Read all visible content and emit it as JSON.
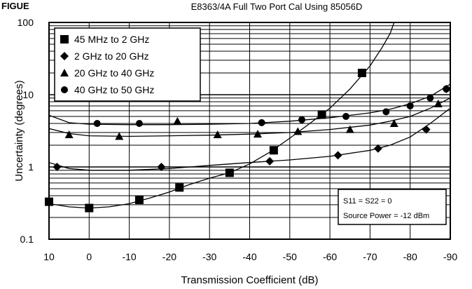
{
  "corner_label": "FIGUE",
  "chart_data": {
    "type": "line",
    "title": "E8363/4A Full Two Port Cal Using 85056D",
    "xlabel": "Transmission Coefficient (dB)",
    "ylabel": "Uncertainty (degrees)",
    "x_ticks": [
      10,
      0,
      -10,
      -20,
      -30,
      -40,
      -50,
      -60,
      -70,
      -80,
      -90
    ],
    "x_tick_labels": [
      "10",
      "0",
      "-10",
      "-20",
      "-30",
      "-40",
      "-50",
      "-60",
      "-70",
      "-80",
      "-90"
    ],
    "y_ticks": [
      0.1,
      1,
      10,
      100
    ],
    "y_tick_labels": [
      "0.1",
      "1",
      "10",
      "100"
    ],
    "xlim": [
      10,
      -90
    ],
    "ylim": [
      0.1,
      100
    ],
    "y_scale": "log",
    "grid": true,
    "legend_position": "top-left",
    "annotation": [
      "S11 = S22 = 0",
      "Source Power = -12 dBm"
    ],
    "series": [
      {
        "name": "45 MHz to 2 GHz",
        "marker": "square",
        "markers": [
          [
            10,
            0.33
          ],
          [
            0,
            0.27
          ],
          [
            -12.5,
            0.35
          ],
          [
            -22.5,
            0.52
          ],
          [
            -35,
            0.83
          ],
          [
            -46,
            1.7
          ],
          [
            -58,
            5.3
          ],
          [
            -68,
            20
          ]
        ],
        "curve": [
          [
            10,
            0.31
          ],
          [
            5,
            0.28
          ],
          [
            0,
            0.27
          ],
          [
            -5,
            0.28
          ],
          [
            -10,
            0.31
          ],
          [
            -15,
            0.37
          ],
          [
            -20,
            0.45
          ],
          [
            -25,
            0.57
          ],
          [
            -30,
            0.7
          ],
          [
            -35,
            0.83
          ],
          [
            -40,
            1.1
          ],
          [
            -45,
            1.6
          ],
          [
            -50,
            2.5
          ],
          [
            -55,
            4.0
          ],
          [
            -60,
            6.5
          ],
          [
            -65,
            12
          ],
          [
            -70,
            25
          ],
          [
            -73,
            45
          ],
          [
            -75,
            70
          ],
          [
            -76,
            100
          ]
        ]
      },
      {
        "name": "2 GHz to 20 GHz",
        "marker": "diamond",
        "markers": [
          [
            8,
            1.0
          ],
          [
            -18,
            1.0
          ],
          [
            -45,
            1.2
          ],
          [
            -62,
            1.45
          ],
          [
            -72,
            1.8
          ],
          [
            -84,
            3.3
          ],
          [
            -89,
            12
          ]
        ],
        "curve": [
          [
            10,
            1.15
          ],
          [
            5,
            0.95
          ],
          [
            0,
            0.9
          ],
          [
            -10,
            0.9
          ],
          [
            -20,
            0.95
          ],
          [
            -30,
            1.05
          ],
          [
            -40,
            1.15
          ],
          [
            -50,
            1.25
          ],
          [
            -60,
            1.4
          ],
          [
            -70,
            1.7
          ],
          [
            -75,
            2.0
          ],
          [
            -80,
            2.6
          ],
          [
            -85,
            4.0
          ],
          [
            -90,
            6.5
          ]
        ]
      },
      {
        "name": "20 GHz to 40 GHz",
        "marker": "triangle",
        "markers": [
          [
            5,
            2.8
          ],
          [
            -7.5,
            2.65
          ],
          [
            -22,
            4.3
          ],
          [
            -32,
            2.8
          ],
          [
            -42,
            2.85
          ],
          [
            -52,
            3.1
          ],
          [
            -65,
            3.3
          ],
          [
            -76,
            4.0
          ],
          [
            -87,
            7.5
          ]
        ],
        "curve": [
          [
            10,
            3.4
          ],
          [
            5,
            2.9
          ],
          [
            0,
            2.7
          ],
          [
            -10,
            2.65
          ],
          [
            -20,
            2.7
          ],
          [
            -30,
            2.75
          ],
          [
            -40,
            2.85
          ],
          [
            -50,
            3.0
          ],
          [
            -60,
            3.3
          ],
          [
            -70,
            3.8
          ],
          [
            -75,
            4.3
          ],
          [
            -80,
            5.0
          ],
          [
            -85,
            6.5
          ],
          [
            -90,
            9
          ]
        ]
      },
      {
        "name": "40 GHz to 50 GHz",
        "marker": "circle",
        "markers": [
          [
            -2,
            4.0
          ],
          [
            -12.5,
            4.0
          ],
          [
            -43,
            4.1
          ],
          [
            -53,
            4.5
          ],
          [
            -64,
            5.0
          ],
          [
            -74,
            5.8
          ],
          [
            -80,
            7.0
          ],
          [
            -85,
            9.0
          ],
          [
            -89,
            12
          ]
        ],
        "curve": [
          [
            10,
            5.2
          ],
          [
            5,
            4.1
          ],
          [
            0,
            3.9
          ],
          [
            -10,
            3.85
          ],
          [
            -20,
            3.85
          ],
          [
            -30,
            3.9
          ],
          [
            -40,
            4.0
          ],
          [
            -50,
            4.3
          ],
          [
            -60,
            4.8
          ],
          [
            -70,
            5.6
          ],
          [
            -75,
            6.3
          ],
          [
            -80,
            7.5
          ],
          [
            -85,
            9.5
          ],
          [
            -90,
            14
          ]
        ]
      }
    ]
  }
}
